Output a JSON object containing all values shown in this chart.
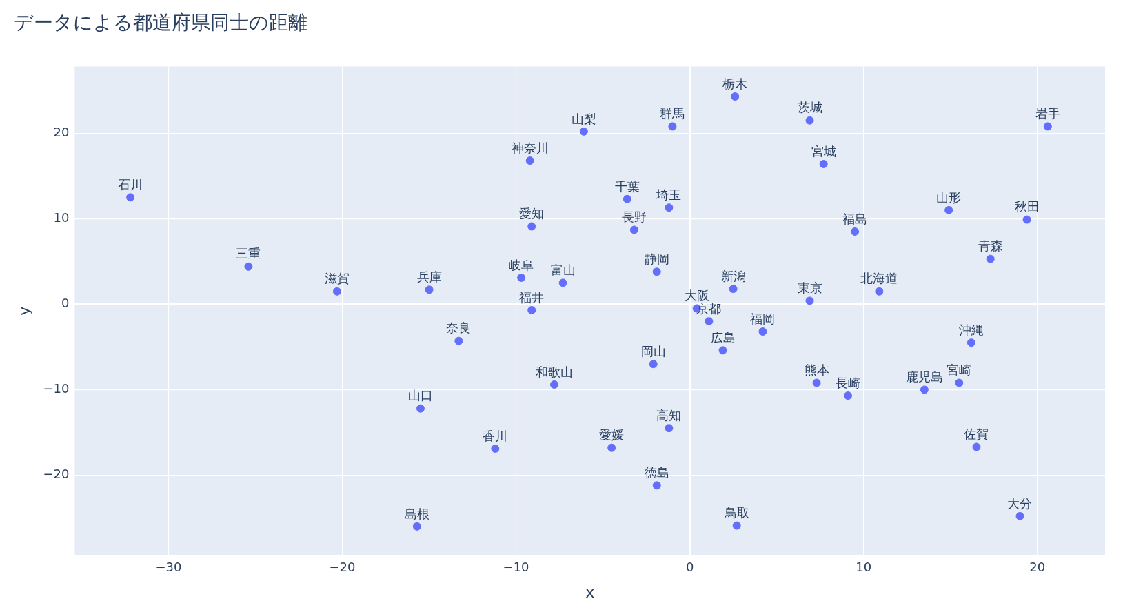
{
  "chart_data": {
    "type": "scatter",
    "title": "データによる都道府県同士の距離",
    "xlabel": "x",
    "ylabel": "y",
    "series": [
      {
        "color": "#636efa",
        "x": [
          -32.2,
          -25.4,
          -20.3,
          -15.0,
          -13.3,
          -15.5,
          -11.2,
          -15.7,
          -9.2,
          -6.1,
          -9.1,
          -9.7,
          -9.1,
          -7.3,
          -7.8,
          -4.5,
          -3.6,
          -3.2,
          -1.0,
          -1.2,
          -1.9,
          -2.1,
          -1.2,
          -1.9,
          2.6,
          0.4,
          1.1,
          1.9,
          2.5,
          4.2,
          2.7,
          6.9,
          7.7,
          6.9,
          7.3,
          9.1,
          9.5,
          10.9,
          14.9,
          13.5,
          15.5,
          16.2,
          19.4,
          17.3,
          16.5,
          19.0,
          20.6
        ],
        "values": [
          12.5,
          4.4,
          1.5,
          1.7,
          -4.3,
          -12.2,
          -16.9,
          -26.0,
          16.8,
          20.2,
          9.1,
          3.1,
          -0.7,
          2.5,
          -9.4,
          -16.8,
          12.3,
          8.7,
          20.8,
          11.3,
          3.8,
          -7.0,
          -14.5,
          -21.2,
          24.3,
          -0.5,
          -2.0,
          -5.4,
          1.8,
          -3.2,
          -25.9,
          21.5,
          16.4,
          0.4,
          -9.2,
          -10.7,
          8.5,
          1.5,
          11.0,
          -10.0,
          -9.2,
          -4.5,
          9.9,
          5.3,
          -16.7,
          -24.8,
          20.8
        ],
        "value_labels": [
          "石川",
          "三重",
          "滋賀",
          "兵庫",
          "奈良",
          "山口",
          "香川",
          "島根",
          "神奈川",
          "山梨",
          "愛知",
          "岐阜",
          "福井",
          "富山",
          "和歌山",
          "愛媛",
          "千葉",
          "長野",
          "群馬",
          "埼玉",
          "静岡",
          "岡山",
          "高知",
          "徳島",
          "栃木",
          "大阪",
          "京都",
          "広島",
          "新潟",
          "福岡",
          "鳥取",
          "茨城",
          "宮城",
          "東京",
          "熊本",
          "長崎",
          "福島",
          "北海道",
          "山形",
          "鹿児島",
          "宮崎",
          "沖縄",
          "秋田",
          "青森",
          "佐賀",
          "大分",
          "岩手"
        ]
      }
    ],
    "xlim": [
      -35.4,
      23.9
    ],
    "ylim": [
      -29.4,
      27.8
    ],
    "xticks": [
      {
        "value": -30,
        "label": "−30"
      },
      {
        "value": -20,
        "label": "−20"
      },
      {
        "value": -10,
        "label": "−10"
      },
      0,
      10,
      20
    ],
    "yticks": [
      {
        "value": -20,
        "label": "−20"
      },
      {
        "value": -10,
        "label": "−10"
      },
      0,
      10,
      20
    ],
    "grid": true,
    "legend": false,
    "marker": "circle"
  }
}
